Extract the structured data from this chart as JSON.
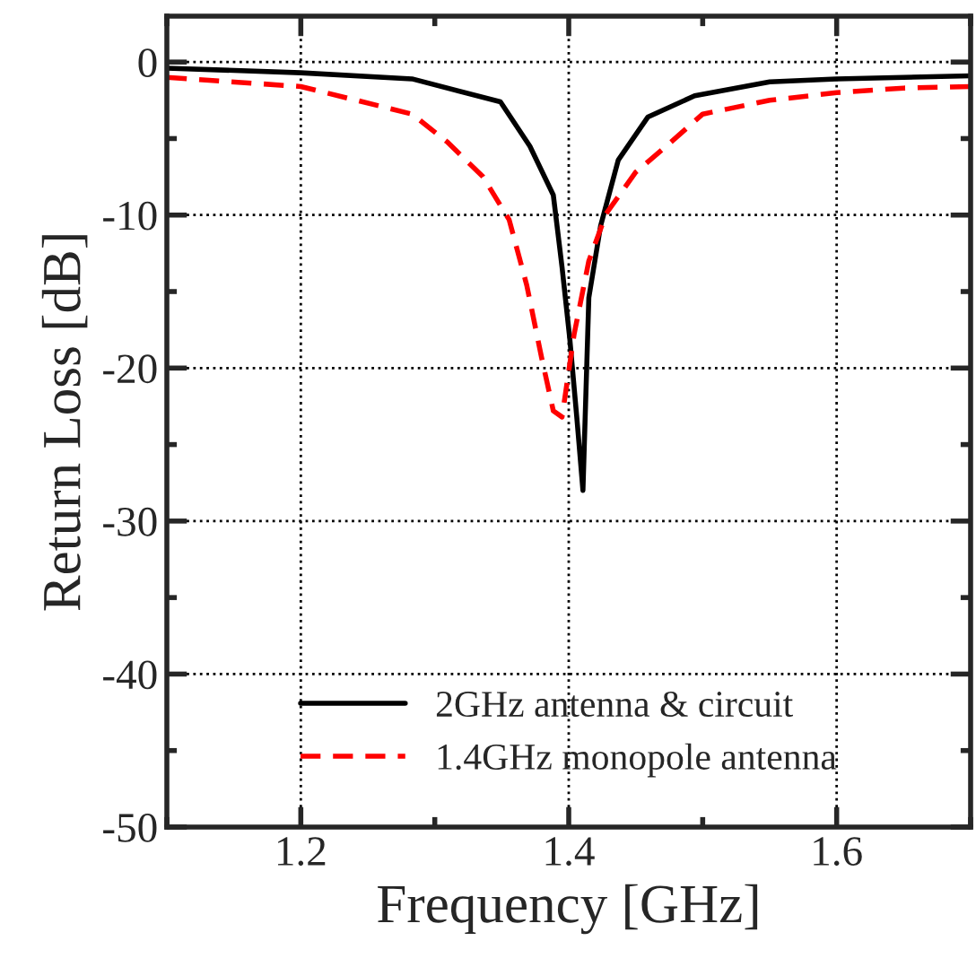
{
  "chart_data": {
    "type": "line",
    "xlabel": "Frequency [GHz]",
    "ylabel": "Return Loss [dB]",
    "xlim": [
      1.1,
      1.7
    ],
    "xticks": [
      1.2,
      1.4,
      1.6
    ],
    "ylim": [
      -50,
      3
    ],
    "yticks": [
      0,
      -10,
      -20,
      -30,
      -40,
      -50
    ],
    "grid": true,
    "legend": "bottom",
    "marker": "none",
    "series": [
      {
        "name": "2GHz antenna & circuit",
        "color": "#000000",
        "line_style": "solid",
        "x": [
          1.1,
          1.2,
          1.283,
          1.349,
          1.371,
          1.3885,
          1.395,
          1.4008,
          1.406,
          1.4106,
          1.415,
          1.4238,
          1.437,
          1.459,
          1.494,
          1.55,
          1.6,
          1.7
        ],
        "values": [
          -0.4,
          -0.7,
          -1.1,
          -2.6,
          -5.5,
          -8.7,
          -13.4,
          -18.1,
          -23.2,
          -28.0,
          -15.4,
          -10.7,
          -6.4,
          -3.6,
          -2.2,
          -1.3,
          -1.1,
          -0.9
        ]
      },
      {
        "name": "1.4GHz monopole antenna",
        "color": "#ff0000",
        "line_style": "dashed",
        "x": [
          1.1,
          1.2,
          1.283,
          1.309,
          1.336,
          1.3555,
          1.3687,
          1.3797,
          1.3885,
          1.395,
          1.404,
          1.415,
          1.428,
          1.45,
          1.4767,
          1.5,
          1.55,
          1.6,
          1.65,
          1.7
        ],
        "values": [
          -1.0,
          -1.6,
          -3.4,
          -5.2,
          -7.5,
          -10.3,
          -14.6,
          -19.3,
          -22.8,
          -23.2,
          -17.8,
          -13.0,
          -9.9,
          -7.2,
          -5.2,
          -3.4,
          -2.5,
          -2.0,
          -1.7,
          -1.6
        ]
      }
    ]
  }
}
